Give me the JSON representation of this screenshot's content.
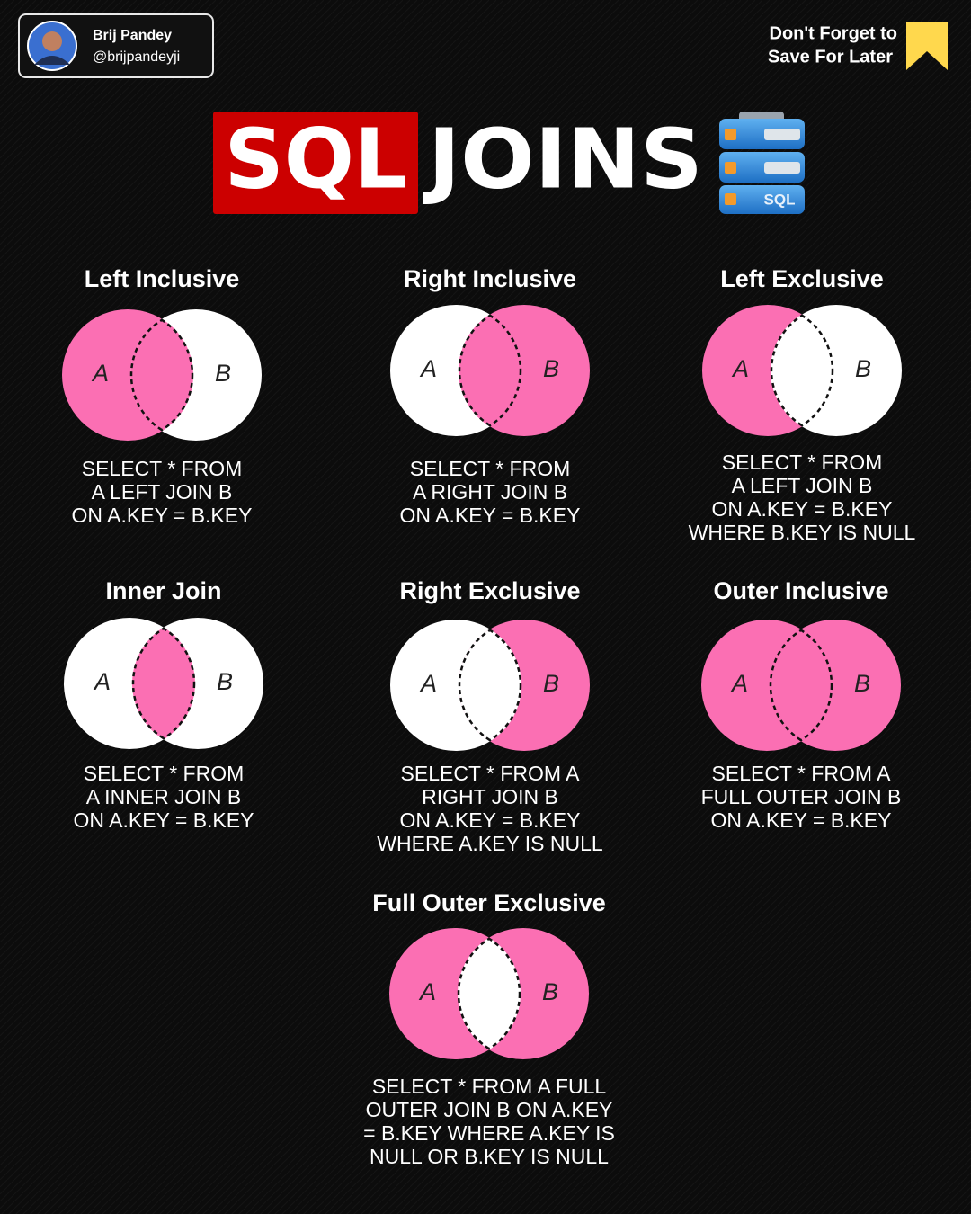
{
  "header": {
    "author": {
      "name": "Brij Pandey",
      "handle": "@brijpandeyji"
    },
    "save_note": [
      "Don't Forget to",
      "Save For Later"
    ]
  },
  "title": {
    "highlight": "SQL",
    "rest": "JOINS",
    "icon_label": "SQL"
  },
  "panels": [
    {
      "title": "Left Inclusive",
      "labels": [
        "A",
        "B"
      ],
      "query": [
        "SELECT * FROM",
        "A LEFT JOIN B",
        "ON A.KEY = B.KEY"
      ]
    },
    {
      "title": "Right Inclusive",
      "labels": [
        "A",
        "B"
      ],
      "query": [
        "SELECT * FROM",
        "A RIGHT JOIN B",
        "ON A.KEY = B.KEY"
      ]
    },
    {
      "title": "Left Exclusive",
      "labels": [
        "A",
        "B"
      ],
      "query": [
        "SELECT * FROM",
        "A LEFT JOIN B",
        "ON A.KEY = B.KEY",
        "WHERE B.KEY IS NULL"
      ]
    },
    {
      "title": "Inner Join",
      "labels": [
        "A",
        "B"
      ],
      "query": [
        "SELECT * FROM",
        "A INNER JOIN B",
        "ON A.KEY = B.KEY"
      ]
    },
    {
      "title": "Right Exclusive",
      "labels": [
        "A",
        "B"
      ],
      "query": [
        "SELECT * FROM A",
        "RIGHT JOIN B",
        "ON A.KEY = B.KEY",
        "WHERE A.KEY IS NULL"
      ]
    },
    {
      "title": "Outer Inclusive",
      "labels": [
        "A",
        "B"
      ],
      "query": [
        "SELECT * FROM A",
        "FULL OUTER JOIN B",
        "ON A.KEY = B.KEY"
      ]
    },
    {
      "title": "Full Outer Exclusive",
      "labels": [
        "A",
        "B"
      ],
      "query": [
        "SELECT * FROM A FULL",
        "OUTER JOIN B ON A.KEY",
        "= B.KEY WHERE A.KEY IS",
        "NULL OR B.KEY IS NULL"
      ]
    }
  ]
}
